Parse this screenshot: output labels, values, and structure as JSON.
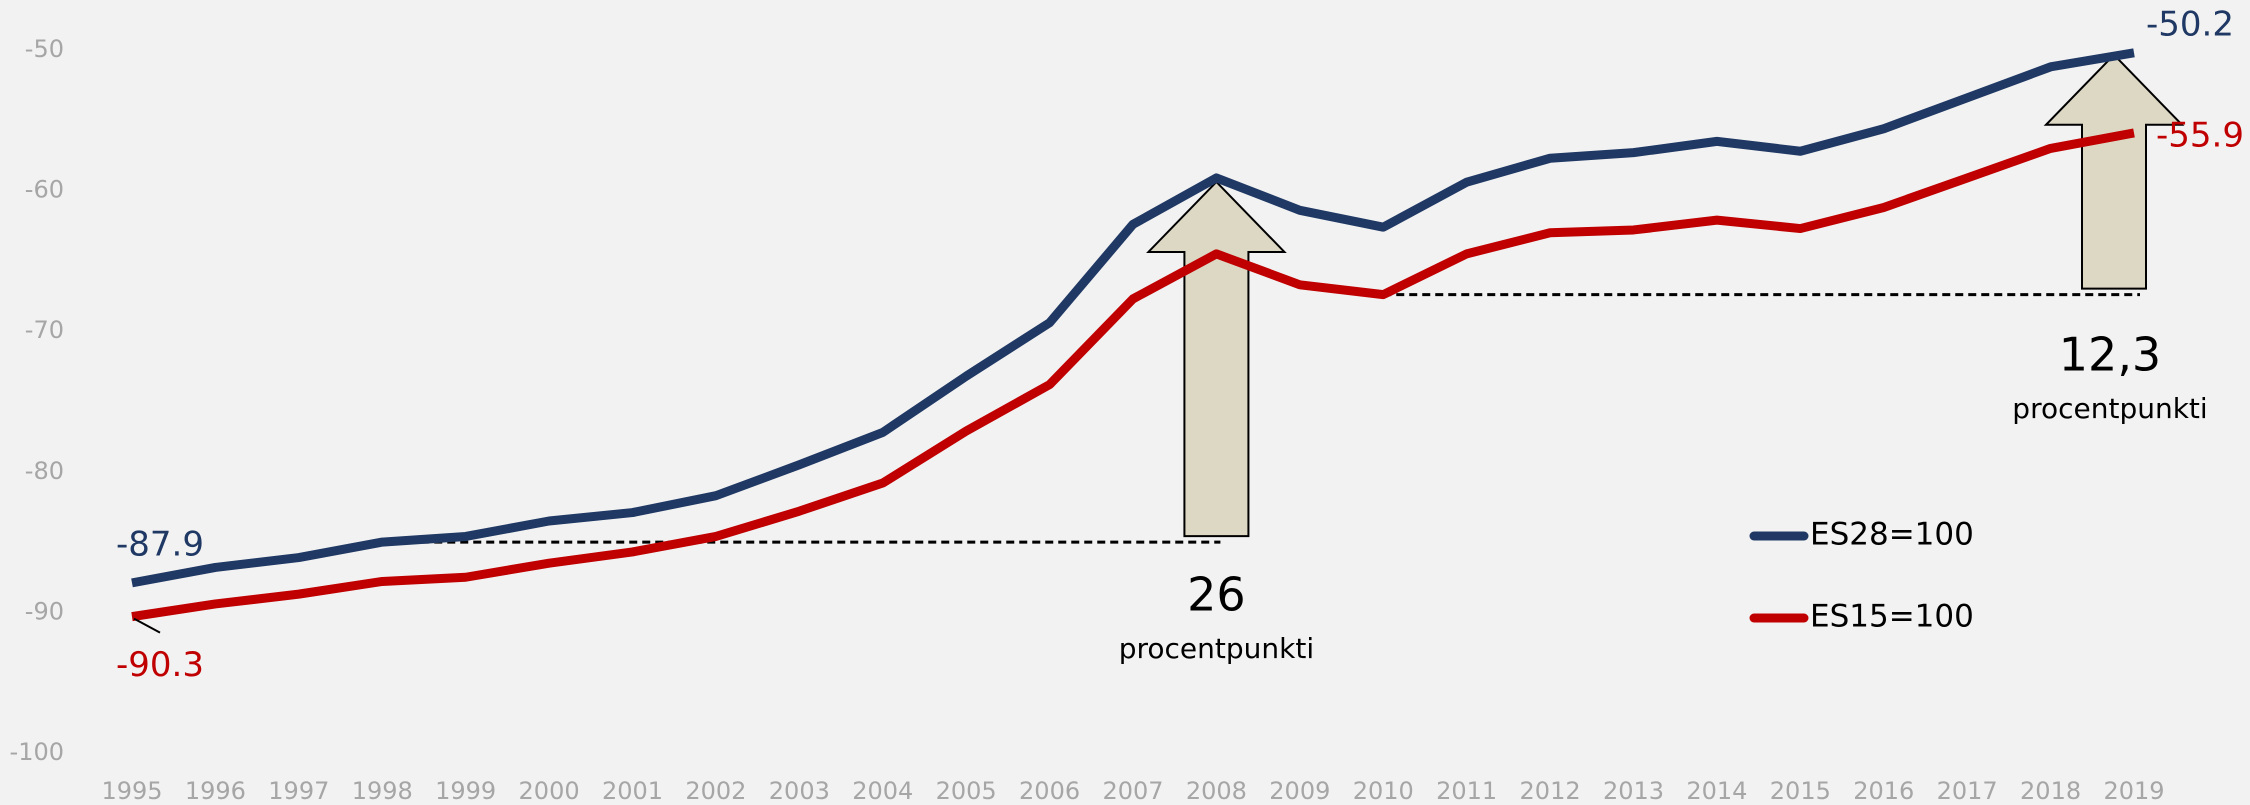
{
  "chart_data": {
    "type": "line",
    "x": [
      1995,
      1996,
      1997,
      1998,
      1999,
      2000,
      2001,
      2002,
      2003,
      2004,
      2005,
      2006,
      2007,
      2008,
      2009,
      2010,
      2011,
      2012,
      2013,
      2014,
      2015,
      2016,
      2017,
      2018,
      2019
    ],
    "series": [
      {
        "name": "ES28=100",
        "color": "#1f3864",
        "values": [
          -87.9,
          -86.8,
          -86.1,
          -85.0,
          -84.6,
          -83.5,
          -82.9,
          -81.7,
          -79.5,
          -77.2,
          -73.2,
          -69.4,
          -62.4,
          -59.1,
          -61.4,
          -62.6,
          -59.4,
          -57.7,
          -57.3,
          -56.5,
          -57.2,
          -55.6,
          -53.4,
          -51.2,
          -50.2
        ]
      },
      {
        "name": "ES15=100",
        "color": "#c00000",
        "values": [
          -90.3,
          -89.4,
          -88.7,
          -87.8,
          -87.5,
          -86.5,
          -85.7,
          -84.6,
          -82.8,
          -80.8,
          -77.1,
          -73.8,
          -67.7,
          -64.5,
          -66.7,
          -67.4,
          -64.5,
          -63.0,
          -62.8,
          -62.1,
          -62.7,
          -61.2,
          -59.1,
          -57.0,
          -55.9
        ]
      }
    ],
    "ylim": [
      -100,
      -50
    ],
    "yticks": [
      -50,
      -60,
      -70,
      -80,
      -90,
      -100
    ],
    "xlim": [
      1995,
      2019
    ],
    "annotations": [
      {
        "text": "26",
        "subtext": "procentpunkti"
      },
      {
        "text": "12,3",
        "subtext": "procentpunkti"
      }
    ],
    "legend": "right",
    "grid": false
  }
}
